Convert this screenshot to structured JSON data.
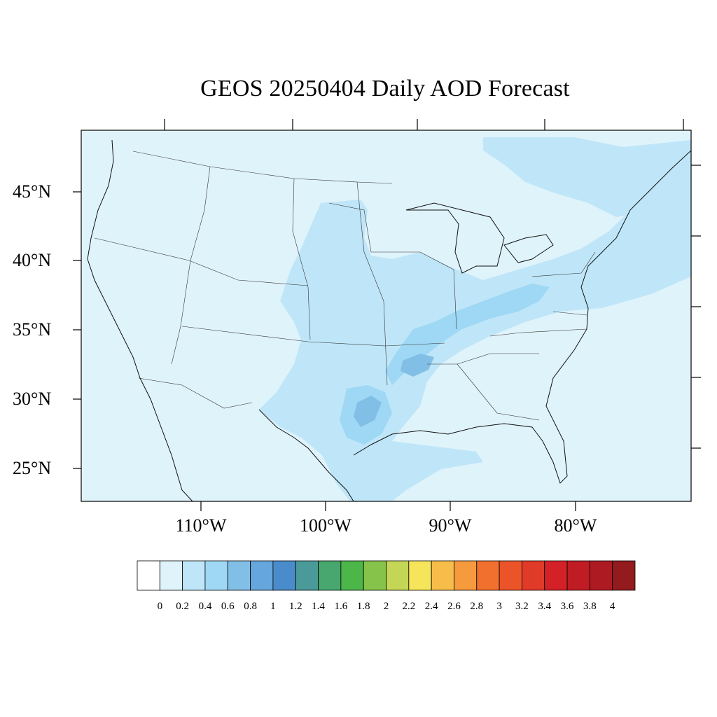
{
  "title": "GEOS 20250404 Daily AOD Forecast",
  "map": {
    "region": "Contiguous United States",
    "variable": "AOD",
    "background_color": "#dff3fb",
    "lat_labels": [
      "45°N",
      "40°N",
      "35°N",
      "30°N",
      "25°N"
    ],
    "lon_labels": [
      "110°W",
      "100°W",
      "90°W",
      "80°W"
    ]
  },
  "colorbar": {
    "labels": [
      "0",
      "0.2",
      "0.4",
      "0.6",
      "0.8",
      "1",
      "1.2",
      "1.4",
      "1.6",
      "1.8",
      "2",
      "2.2",
      "2.4",
      "2.6",
      "2.8",
      "3",
      "3.2",
      "3.4",
      "3.6",
      "3.8",
      "4"
    ],
    "colors": [
      "#ffffff",
      "#dff3fb",
      "#bfe6f8",
      "#9fd8f4",
      "#82bfe6",
      "#65a6dc",
      "#4a8ccb",
      "#4a9a9a",
      "#48a66f",
      "#4cb649",
      "#86c34b",
      "#c4d655",
      "#f6e55a",
      "#f7bd4a",
      "#f59b3d",
      "#f2702e",
      "#eb5329",
      "#e03a28",
      "#d42127",
      "#c01c24",
      "#ad1a21",
      "#931a1d"
    ]
  }
}
